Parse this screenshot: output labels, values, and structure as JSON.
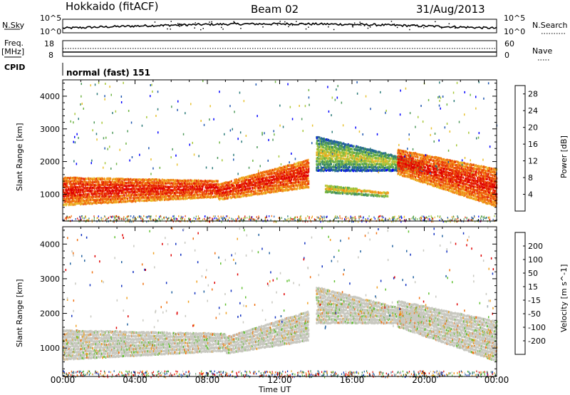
{
  "header": {
    "station": "Hokkaido (fitACF)",
    "beam": "Beam 02",
    "date": "31/Aug/2013"
  },
  "top_panels": {
    "nsky_label": "N.Sky",
    "nsky_ticks": [
      "10^5",
      "10^0"
    ],
    "nsearch_label": "N.Search",
    "nsearch_ticks": [
      "10^5",
      "10^0"
    ],
    "freq_label_1": "Freq.",
    "freq_label_2": "[MHz]",
    "freq_ticks": [
      "18",
      "8"
    ],
    "nave_label": "Nave",
    "nave_ticks": [
      "60",
      "0"
    ],
    "cpid_label": "CPID",
    "cpid_text": "normal (fast) 151"
  },
  "chart_data": [
    {
      "type": "heatmap",
      "title": "",
      "xlabel": "Time UT",
      "ylabel": "Slant Range [km]",
      "x_range": [
        "00:00",
        "24:00"
      ],
      "y_range": [
        180,
        4500
      ],
      "y_ticks": [
        1000,
        2000,
        3000,
        4000
      ],
      "x_ticks": [
        "00:00",
        "04:00",
        "08:00",
        "12:00",
        "16:00",
        "20:00",
        "00:00"
      ],
      "colorbar": {
        "label": "Power [dB]",
        "ticks": [
          "4",
          "8",
          "12",
          "16",
          "20",
          "24",
          "28"
        ],
        "range": [
          0,
          30
        ],
        "colors": [
          "#0000ff",
          "#1f56b0",
          "#2a7a78",
          "#4e9a5a",
          "#6fb544",
          "#a8c83a",
          "#e8c230",
          "#f2a020",
          "#f07010",
          "#e83808",
          "#e00000"
        ]
      },
      "echo_bands": [
        {
          "t": [
            0,
            8.6
          ],
          "r_lo": [
            650,
            900
          ],
          "r_hi": [
            1550,
            1450
          ],
          "level": "high"
        },
        {
          "t": [
            8.6,
            13.6
          ],
          "r_lo": [
            820,
            1200
          ],
          "r_hi": [
            1350,
            2100
          ],
          "level": "high"
        },
        {
          "t": [
            14,
            20
          ],
          "r_lo": [
            1700,
            1700
          ],
          "r_hi": [
            2800,
            2000
          ],
          "level": "low"
        },
        {
          "t": [
            14.5,
            18
          ],
          "r_lo": [
            1050,
            900
          ],
          "r_hi": [
            1300,
            1100
          ],
          "level": "mid"
        },
        {
          "t": [
            18.5,
            24
          ],
          "r_lo": [
            1600,
            600
          ],
          "r_hi": [
            2400,
            1800
          ],
          "level": "high"
        }
      ]
    },
    {
      "type": "heatmap",
      "title": "",
      "xlabel": "Time UT",
      "ylabel": "Slant Range [km]",
      "x_range": [
        "00:00",
        "24:00"
      ],
      "y_range": [
        180,
        4500
      ],
      "y_ticks": [
        1000,
        2000,
        3000,
        4000
      ],
      "x_ticks": [
        "00:00",
        "04:00",
        "08:00",
        "12:00",
        "16:00",
        "20:00",
        "00:00"
      ],
      "colorbar": {
        "label": "Velocity [m s^-1]",
        "ticks": [
          "200",
          "100",
          "50",
          "15",
          "-15",
          "-50",
          "-100",
          "-200"
        ],
        "range": [
          -250,
          250
        ],
        "colors": [
          "#1030c0",
          "#2060a0",
          "#308050",
          "#60c030",
          "#c8c8c0",
          "#f0a020",
          "#f07010",
          "#e02010",
          "#e00000"
        ]
      },
      "echo_bands": [
        {
          "t": [
            0,
            9
          ],
          "r_lo": [
            650,
            900
          ],
          "r_hi": [
            1550,
            1450
          ],
          "level": "ground"
        },
        {
          "t": [
            9,
            13.6
          ],
          "r_lo": [
            820,
            1200
          ],
          "r_hi": [
            1350,
            2100
          ],
          "level": "ground"
        },
        {
          "t": [
            14,
            20
          ],
          "r_lo": [
            1700,
            1700
          ],
          "r_hi": [
            2800,
            2000
          ],
          "level": "ground"
        },
        {
          "t": [
            18.5,
            24
          ],
          "r_lo": [
            1600,
            600
          ],
          "r_hi": [
            2400,
            1800
          ],
          "level": "ground"
        }
      ]
    }
  ]
}
